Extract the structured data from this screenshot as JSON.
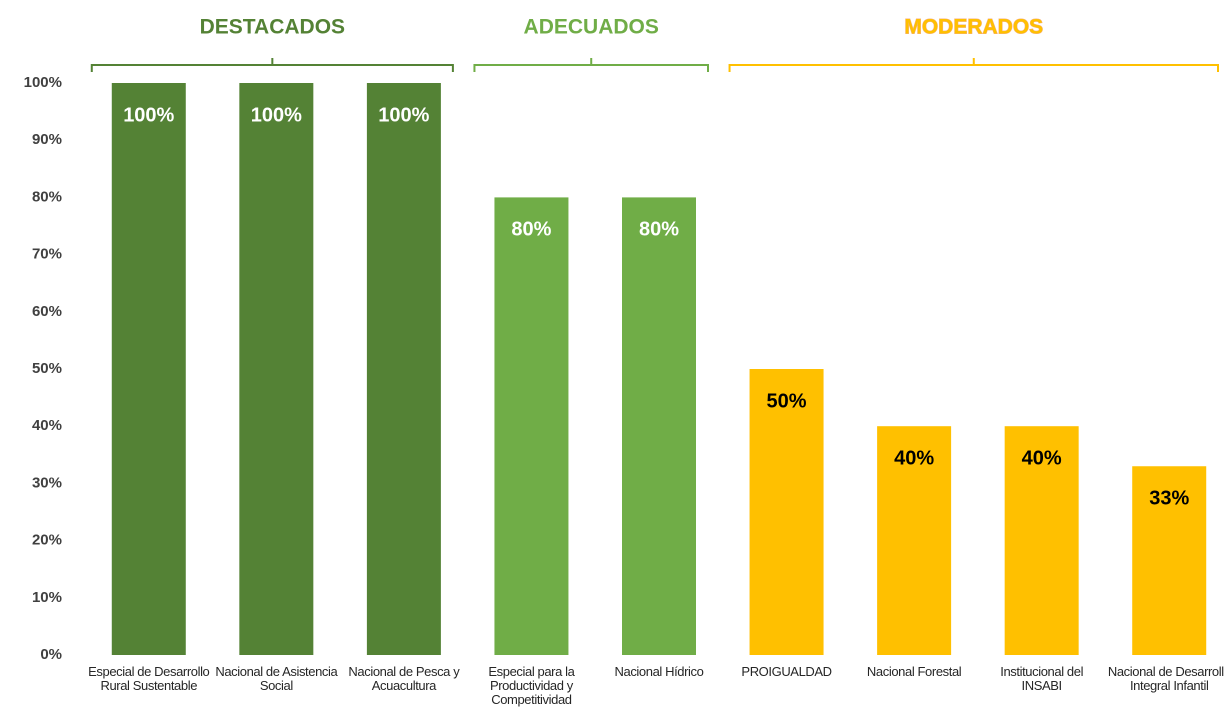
{
  "chart_data": {
    "type": "bar",
    "categories": [
      "Especial de Desarrollo Rural Sustentable",
      "Nacional de Asistencia Social",
      "Nacional de Pesca y Acuacultura",
      "Especial para la Productividad y Competitividad",
      "Nacional Hídrico",
      "PROIGUALDAD",
      "Nacional Forestal",
      "Institucional del INSABI",
      "Nacional de Desarrollo Integral Infantil"
    ],
    "series": [
      {
        "name": "DESTACADOS",
        "color": "#548235",
        "values": [
          100,
          100,
          100,
          null,
          null,
          null,
          null,
          null,
          null
        ],
        "value_labels": [
          "100%",
          "100%",
          "100%",
          null,
          null,
          null,
          null,
          null,
          null
        ]
      },
      {
        "name": "ADECUADOS",
        "color": "#70ad47",
        "values": [
          null,
          null,
          null,
          80,
          80,
          null,
          null,
          null,
          null
        ],
        "value_labels": [
          null,
          null,
          null,
          "80%",
          "80%",
          null,
          null,
          null,
          null
        ]
      },
      {
        "name": "MODERADOS",
        "color": "#ffc000",
        "values": [
          null,
          null,
          null,
          null,
          null,
          50,
          40,
          40,
          33
        ],
        "value_labels": [
          null,
          null,
          null,
          null,
          null,
          "50%",
          "40%",
          "40%",
          "33%"
        ]
      }
    ],
    "ylim": [
      0,
      100
    ],
    "yticks": [
      {
        "value": 0,
        "label": "0%"
      },
      {
        "value": 10,
        "label": "10%"
      },
      {
        "value": 20,
        "label": "20%"
      },
      {
        "value": 30,
        "label": "30%"
      },
      {
        "value": 40,
        "label": "40%"
      },
      {
        "value": 50,
        "label": "50%"
      },
      {
        "value": 60,
        "label": "60%"
      },
      {
        "value": 70,
        "label": "70%"
      },
      {
        "value": 80,
        "label": "80%"
      },
      {
        "value": 90,
        "label": "90%"
      },
      {
        "value": 100,
        "label": "100%"
      }
    ]
  }
}
